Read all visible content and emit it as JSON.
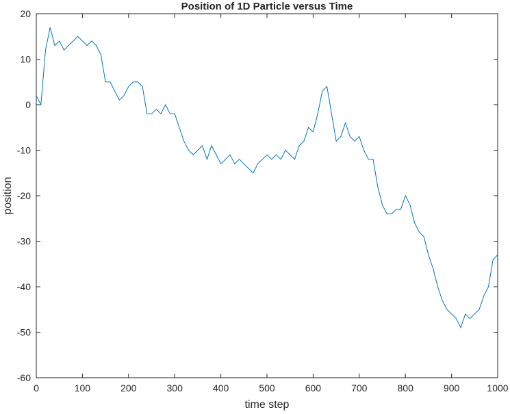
{
  "chart_data": {
    "type": "line",
    "title": "Position of 1D Particle versus Time",
    "xlabel": "time step",
    "ylabel": "position",
    "x": [
      0,
      10,
      20,
      30,
      40,
      50,
      60,
      70,
      80,
      90,
      100,
      110,
      120,
      130,
      140,
      150,
      160,
      170,
      180,
      190,
      200,
      210,
      220,
      230,
      240,
      250,
      260,
      270,
      280,
      290,
      300,
      310,
      320,
      330,
      340,
      350,
      360,
      370,
      380,
      390,
      400,
      410,
      420,
      430,
      440,
      450,
      460,
      470,
      480,
      490,
      500,
      510,
      520,
      530,
      540,
      550,
      560,
      570,
      580,
      590,
      600,
      610,
      620,
      630,
      640,
      650,
      660,
      670,
      680,
      690,
      700,
      710,
      720,
      730,
      740,
      750,
      760,
      770,
      780,
      790,
      800,
      810,
      820,
      830,
      840,
      850,
      860,
      870,
      880,
      890,
      900,
      910,
      920,
      930,
      940,
      950,
      960,
      970,
      980,
      990,
      1000
    ],
    "series": [
      {
        "name": "position",
        "color": "#0072bd",
        "values": [
          2,
          0,
          12,
          17,
          13,
          14,
          12,
          13,
          14,
          15,
          14,
          13,
          14,
          13,
          11,
          5,
          5,
          3,
          1,
          2,
          4,
          5,
          5,
          4,
          -2,
          -2,
          -1,
          -2,
          0,
          -2,
          -2,
          -5,
          -8,
          -10,
          -11,
          -10,
          -9,
          -12,
          -9,
          -11,
          -13,
          -12,
          -11,
          -13,
          -12,
          -13,
          -14,
          -15,
          -13,
          -12,
          -11,
          -12,
          -11,
          -12,
          -10,
          -11,
          -12,
          -9,
          -8,
          -5,
          -6,
          -2,
          3,
          4,
          -2,
          -8,
          -7,
          -4,
          -7,
          -8,
          -7,
          -10,
          -12,
          -12,
          -18,
          -22,
          -24,
          -24,
          -23,
          -23,
          -20,
          -22,
          -26,
          -28,
          -29,
          -33,
          -36,
          -40,
          -43,
          -45,
          -46,
          -47,
          -49,
          -46,
          -47,
          -46,
          -45,
          -42,
          -40,
          -34,
          -33
        ]
      }
    ],
    "xlim": [
      0,
      1000
    ],
    "ylim": [
      -60,
      20
    ],
    "xticks": [
      0,
      100,
      200,
      300,
      400,
      500,
      600,
      700,
      800,
      900,
      1000
    ],
    "yticks": [
      -60,
      -50,
      -40,
      -30,
      -20,
      -10,
      0,
      10,
      20
    ],
    "grid": false
  }
}
